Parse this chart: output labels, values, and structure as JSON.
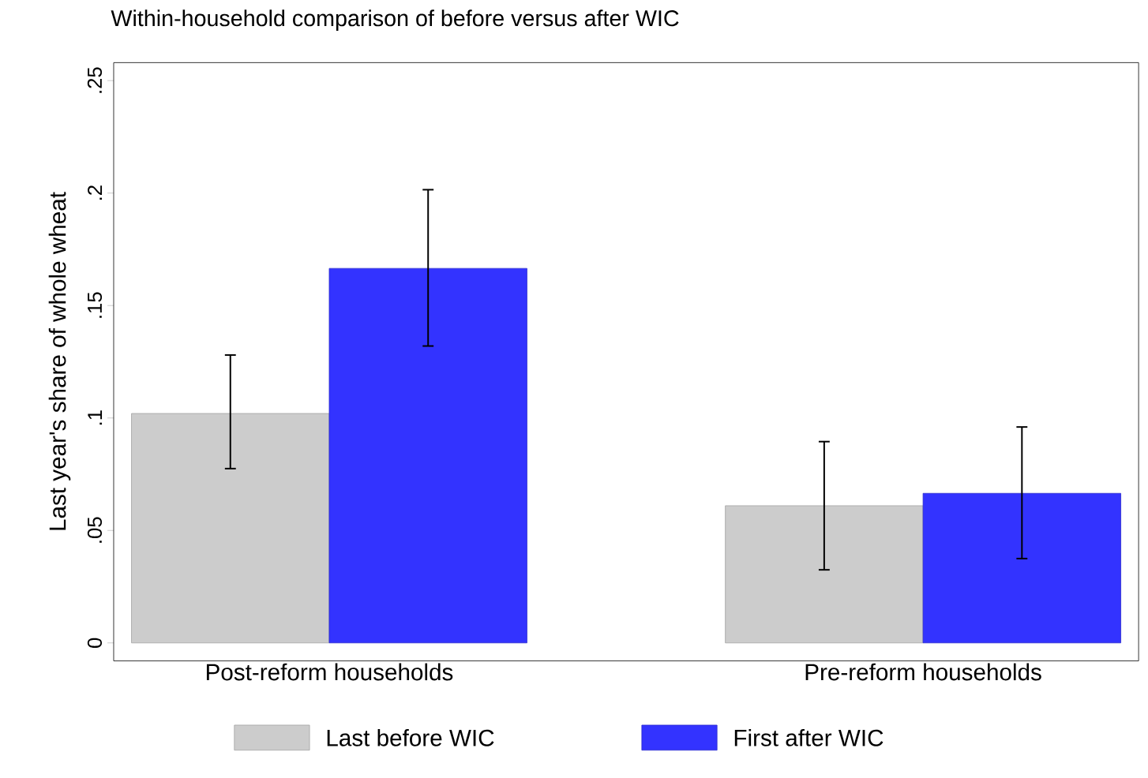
{
  "chart_data": {
    "type": "bar",
    "title": "Within-household comparison of before versus after WIC",
    "ylabel": "Last year's share of whole wheat",
    "categories": [
      "Post-reform households",
      "Pre-reform households"
    ],
    "series": [
      {
        "name": "Last before WIC",
        "color": "#cccccc",
        "values": [
          0.102,
          0.061
        ],
        "errors": [
          [
            0.0775,
            0.128
          ],
          [
            0.0325,
            0.0895
          ]
        ]
      },
      {
        "name": "First after WIC",
        "color": "#3333ff",
        "values": [
          0.1665,
          0.0665
        ],
        "errors": [
          [
            0.132,
            0.2015
          ],
          [
            0.0375,
            0.096
          ]
        ]
      }
    ],
    "ylim": [
      -0.008,
      0.258
    ],
    "yticks": [
      0,
      {
        "value": 0.05,
        "label": ".05"
      },
      {
        "value": 0.1,
        "label": ".1"
      },
      {
        "value": 0.15,
        "label": ".15"
      },
      {
        "value": 0.2,
        "label": ".2"
      },
      {
        "value": 0.25,
        "label": ".25"
      }
    ],
    "grid": false,
    "legend": "bottom"
  }
}
